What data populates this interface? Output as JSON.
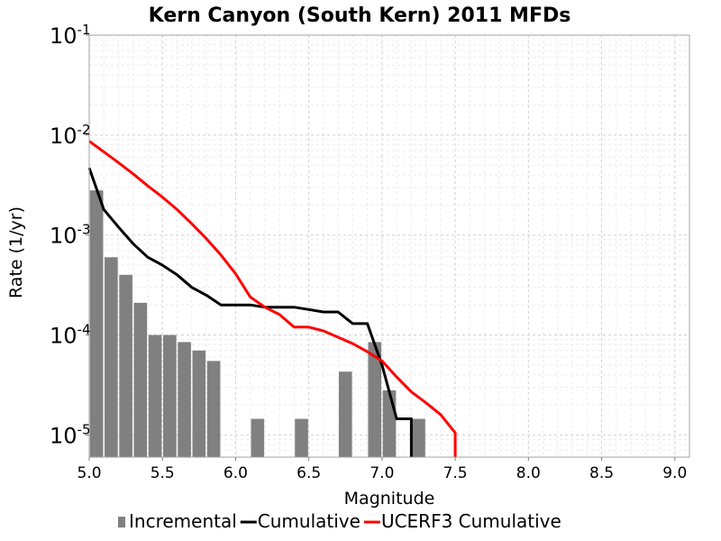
{
  "chart_data": {
    "type": "bar",
    "title": "Kern Canyon (South Kern) 2011 MFDs",
    "xlabel": "Magnitude",
    "ylabel": "Rate (1/yr)",
    "xlim": [
      5.0,
      9.1
    ],
    "ylim": [
      6e-06,
      0.1
    ],
    "y_scale": "log",
    "grid": true,
    "legend_position": "bottom",
    "x_ticks": [
      "5.0",
      "5.5",
      "6.0",
      "6.5",
      "7.0",
      "7.5",
      "8.0",
      "8.5",
      "9.0"
    ],
    "y_ticks": [
      {
        "value": 1e-05,
        "base": "10",
        "exp": "-5"
      },
      {
        "value": 0.0001,
        "base": "10",
        "exp": "-4"
      },
      {
        "value": 0.001,
        "base": "10",
        "exp": "-3"
      },
      {
        "value": 0.01,
        "base": "10",
        "exp": "-2"
      },
      {
        "value": 0.1,
        "base": "10",
        "exp": "-1"
      }
    ],
    "bar_width": 0.09,
    "series": [
      {
        "name": "Incremental",
        "type": "bar",
        "color": "#808080",
        "x": [
          5.05,
          5.15,
          5.25,
          5.35,
          5.45,
          5.55,
          5.65,
          5.75,
          5.85,
          6.15,
          6.45,
          6.75,
          6.95,
          7.05,
          7.25
        ],
        "y": [
          0.0028,
          0.0006,
          0.0004,
          0.00021,
          0.0001,
          0.0001,
          8.5e-05,
          7e-05,
          5.5e-05,
          1.45e-05,
          1.45e-05,
          4.3e-05,
          8.5e-05,
          2.8e-05,
          1.45e-05
        ]
      },
      {
        "name": "Cumulative",
        "type": "line",
        "color": "#000000",
        "x": [
          5.0,
          5.1,
          5.2,
          5.3,
          5.4,
          5.5,
          5.6,
          5.7,
          5.8,
          5.9,
          6.0,
          6.1,
          6.2,
          6.3,
          6.4,
          6.5,
          6.6,
          6.7,
          6.8,
          6.9,
          7.0,
          7.1,
          7.2,
          7.2
        ],
        "y": [
          0.0047,
          0.0018,
          0.0012,
          0.00082,
          0.0006,
          0.0005,
          0.0004,
          0.0003,
          0.00025,
          0.0002,
          0.0002,
          0.0002,
          0.00019,
          0.00019,
          0.00019,
          0.00018,
          0.00017,
          0.00017,
          0.00013,
          0.00013,
          5e-05,
          1.45e-05,
          1.45e-05,
          6e-06
        ]
      },
      {
        "name": "UCERF3 Cumulative",
        "type": "line",
        "color": "#ff0000",
        "x": [
          5.0,
          5.1,
          5.2,
          5.3,
          5.4,
          5.5,
          5.6,
          5.7,
          5.8,
          5.9,
          6.0,
          6.1,
          6.2,
          6.3,
          6.4,
          6.5,
          6.6,
          6.7,
          6.8,
          6.9,
          7.0,
          7.1,
          7.2,
          7.3,
          7.4,
          7.5,
          7.5
        ],
        "y": [
          0.0087,
          0.0068,
          0.0053,
          0.0041,
          0.0031,
          0.0024,
          0.0018,
          0.0013,
          0.00092,
          0.00063,
          0.00041,
          0.00024,
          0.00019,
          0.00016,
          0.00012,
          0.00012,
          0.00011,
          9.5e-05,
          8.2e-05,
          6.8e-05,
          5.5e-05,
          3.8e-05,
          2.7e-05,
          2.1e-05,
          1.6e-05,
          1.05e-05,
          6e-06
        ]
      }
    ]
  }
}
